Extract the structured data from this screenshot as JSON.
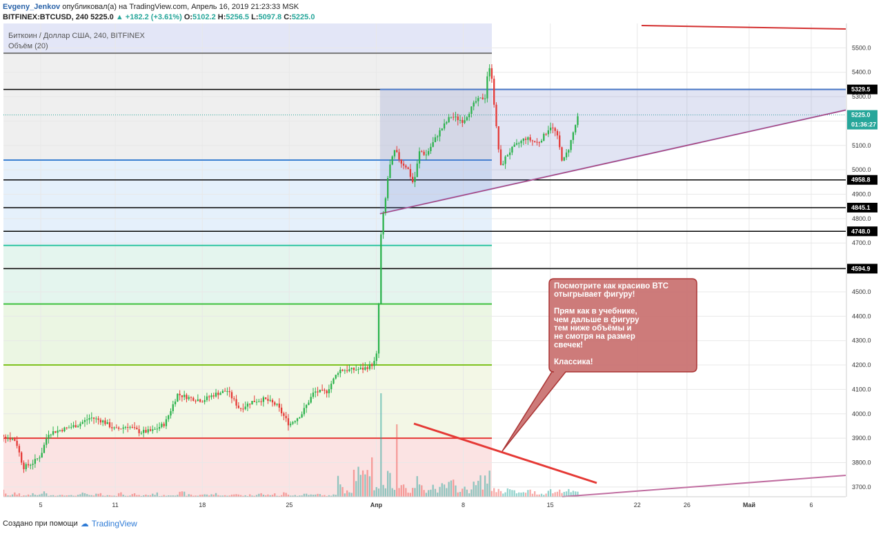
{
  "header": {
    "author": "Evgeny_Jenkov",
    "published": "опубликовал(а) на TradingView.com, Апрель 16, 2019 21:23:33 MSK",
    "symbol": "BITFINEX:BTCUSD, 240",
    "last": "5225.0",
    "change": "▲ +182.2 (+3.61%)",
    "o_label": "O:",
    "o": "5102.2",
    "h_label": "H:",
    "h": "5256.5",
    "l_label": "L:",
    "l": "5097.8",
    "c_label": "C:",
    "c": "5225.0"
  },
  "footer": {
    "text": "Создано при помощи",
    "brand": "TradingView"
  },
  "chart_data": {
    "type": "candlestick",
    "title": "Биткоин / Доллар США, 240, BITFINEX",
    "volume_pane": "Объём (20)",
    "y_axis": {
      "range": [
        3660,
        5600
      ],
      "ticks": [
        3700,
        3800,
        3900,
        4000,
        4100,
        4200,
        4300,
        4400,
        4500,
        4600,
        4700,
        4800,
        4900,
        5000,
        5100,
        5200,
        5300,
        5400,
        5500
      ]
    },
    "x_axis": {
      "range_days": [
        1,
        41
      ],
      "ticks": [
        {
          "label": "5",
          "day": 5
        },
        {
          "label": "11",
          "day": 11
        },
        {
          "label": "18",
          "day": 18
        },
        {
          "label": "25",
          "day": 25
        },
        {
          "label": "Апр",
          "day": 32
        },
        {
          "label": "8",
          "day": 39
        },
        {
          "label": "15",
          "day": 46
        },
        {
          "label": "22",
          "day": 53
        },
        {
          "label": "26",
          "day": 57
        },
        {
          "label": "Май",
          "day": 62
        },
        {
          "label": "6",
          "day": 67
        }
      ]
    },
    "price_path": [
      [
        1,
        3905
      ],
      [
        2,
        3912
      ],
      [
        3,
        3890
      ],
      [
        3.6,
        3780
      ],
      [
        4.4,
        3800
      ],
      [
        5,
        3830
      ],
      [
        5.6,
        3920
      ],
      [
        7,
        3940
      ],
      [
        8,
        3955
      ],
      [
        9,
        3985
      ],
      [
        10,
        3970
      ],
      [
        11,
        3935
      ],
      [
        12,
        3950
      ],
      [
        13,
        3925
      ],
      [
        14,
        3930
      ],
      [
        15,
        3960
      ],
      [
        16,
        4080
      ],
      [
        17,
        4065
      ],
      [
        18,
        4055
      ],
      [
        19,
        4080
      ],
      [
        20,
        4095
      ],
      [
        21,
        4020
      ],
      [
        22,
        4050
      ],
      [
        23,
        4060
      ],
      [
        24,
        4035
      ],
      [
        25,
        3955
      ],
      [
        26,
        4000
      ],
      [
        27,
        4090
      ],
      [
        28,
        4090
      ],
      [
        29,
        4180
      ],
      [
        30,
        4180
      ],
      [
        31,
        4185
      ],
      [
        31.6,
        4200
      ],
      [
        32,
        4220
      ],
      [
        32.2,
        4450
      ],
      [
        32.4,
        4760
      ],
      [
        32.7,
        4860
      ],
      [
        33,
        5000
      ],
      [
        33.5,
        5080
      ],
      [
        34,
        5030
      ],
      [
        34.5,
        5010
      ],
      [
        35,
        4940
      ],
      [
        35.5,
        5080
      ],
      [
        36,
        5060
      ],
      [
        37,
        5150
      ],
      [
        38,
        5220
      ],
      [
        39,
        5200
      ],
      [
        40,
        5280
      ],
      [
        40.8,
        5300
      ],
      [
        41,
        5430
      ],
      [
        41.3,
        5380
      ],
      [
        41.6,
        5200
      ],
      [
        42,
        5010
      ],
      [
        42.5,
        5060
      ],
      [
        43,
        5090
      ],
      [
        44,
        5130
      ],
      [
        45,
        5110
      ],
      [
        45.5,
        5140
      ],
      [
        46,
        5180
      ],
      [
        46.5,
        5150
      ],
      [
        47,
        5030
      ],
      [
        47.5,
        5090
      ],
      [
        48,
        5180
      ],
      [
        48.3,
        5225
      ]
    ],
    "volume_profile": [
      2,
      8,
      3,
      5,
      2,
      4,
      3,
      6,
      2,
      3,
      4,
      2,
      3,
      5,
      2,
      4,
      3,
      2,
      6,
      3,
      4,
      2,
      3,
      5,
      2,
      3,
      4,
      6,
      3,
      2,
      4,
      3,
      5,
      2,
      3,
      4,
      2,
      3,
      5,
      3,
      4,
      2,
      6,
      3,
      2,
      5,
      3,
      4,
      2,
      3,
      25,
      12,
      40,
      30,
      55,
      18,
      22,
      30,
      15,
      20,
      10,
      25,
      14,
      18,
      12,
      16,
      20,
      15,
      12,
      18,
      25,
      30,
      14,
      10,
      12,
      8,
      6,
      9,
      7,
      5,
      10,
      8,
      12,
      9,
      7
    ],
    "horizontal_lines": [
      {
        "price": 5478,
        "color": "#777777",
        "width": 2
      },
      {
        "price": 5329.5,
        "color": "#000000",
        "width": 1.5,
        "label": "5329.5"
      },
      {
        "price": 5225,
        "color": "#26a69a",
        "width": 1,
        "dashed": true
      },
      {
        "price": 5040,
        "color": "#3a7fd1",
        "width": 2
      },
      {
        "price": 4958.8,
        "color": "#000000",
        "width": 1.5,
        "label": "4958.8"
      },
      {
        "price": 4845.1,
        "color": "#000000",
        "width": 1.5,
        "label": "4845.1"
      },
      {
        "price": 4748.0,
        "color": "#000000",
        "width": 1.5,
        "label": "4748.0"
      },
      {
        "price": 4690,
        "color": "#2ec4a0",
        "width": 2
      },
      {
        "price": 4594.9,
        "color": "#000000",
        "width": 1.5,
        "label": "4594.9"
      },
      {
        "price": 4450,
        "color": "#3cbf3c",
        "width": 2
      },
      {
        "price": 4200,
        "color": "#7dc21e",
        "width": 2
      },
      {
        "price": 3900,
        "color": "#e53935",
        "width": 2
      }
    ],
    "last_price_label": "5225.0",
    "countdown_label": "01:36:27",
    "annotation": {
      "lines": [
        "Посмотрите как красиво BTC",
        "отыгрывает фигуру!",
        "",
        "Прям как в учебнике,",
        "чем дальше в фигуру",
        "тем ниже объёмы и",
        "не смотря на размер",
        "свечек!",
        "",
        "Классика!"
      ]
    }
  }
}
